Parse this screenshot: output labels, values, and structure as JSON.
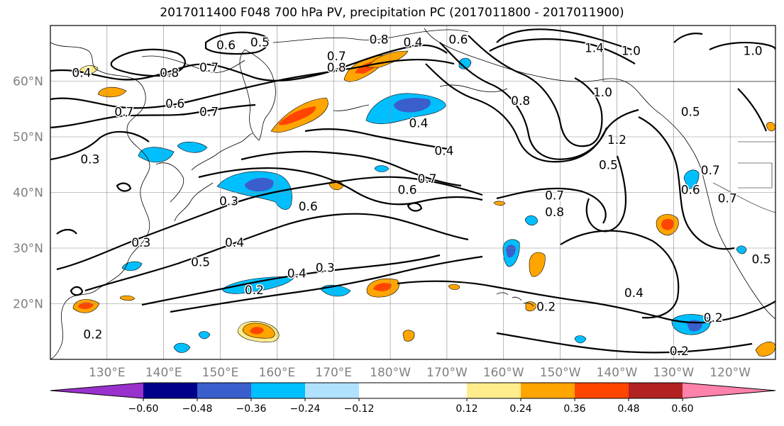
{
  "title": "2017011400 F048 700 hPa PV, precipitation PC (2017011800 - 2017011900)",
  "map": {
    "lat_labels": [
      "60°N",
      "50°N",
      "40°N",
      "30°N",
      "20°N"
    ],
    "lat_values": [
      60,
      50,
      40,
      30,
      20
    ],
    "lon_labels": [
      "130°E",
      "140°E",
      "150°E",
      "160°E",
      "170°E",
      "180°W",
      "170°W",
      "160°W",
      "150°W",
      "140°W",
      "130°W",
      "120°W"
    ],
    "lon_values": [
      130,
      140,
      150,
      160,
      170,
      180,
      190,
      200,
      210,
      220,
      230,
      240
    ],
    "extent": {
      "lon_min": 120,
      "lon_max": 248,
      "lat_min": 10,
      "lat_max": 70
    },
    "contour_labels": [
      {
        "text": "0.6",
        "lon": 151,
        "lat": 66.5
      },
      {
        "text": "0.5",
        "lon": 157,
        "lat": 67
      },
      {
        "text": "0.8",
        "lon": 141,
        "lat": 61.5
      },
      {
        "text": "0.7",
        "lon": 148,
        "lat": 62.5
      },
      {
        "text": "0.4",
        "lon": 125.5,
        "lat": 61.5
      },
      {
        "text": "0.6",
        "lon": 142,
        "lat": 56
      },
      {
        "text": "0.7",
        "lon": 133,
        "lat": 54.5
      },
      {
        "text": "0.7",
        "lon": 148,
        "lat": 54.5
      },
      {
        "text": "0.3",
        "lon": 127,
        "lat": 46
      },
      {
        "text": "0.8",
        "lon": 170.5,
        "lat": 62.5
      },
      {
        "text": "0.7",
        "lon": 170.5,
        "lat": 64.5
      },
      {
        "text": "0.8",
        "lon": 178,
        "lat": 67.5
      },
      {
        "text": "0.4",
        "lon": 184,
        "lat": 67
      },
      {
        "text": "0.6",
        "lon": 192,
        "lat": 67.5
      },
      {
        "text": "0.4",
        "lon": 185,
        "lat": 52.5
      },
      {
        "text": "0.4",
        "lon": 189.5,
        "lat": 47.5
      },
      {
        "text": "0.8",
        "lon": 203,
        "lat": 56.5
      },
      {
        "text": "1.0",
        "lon": 217.5,
        "lat": 58
      },
      {
        "text": "1.4",
        "lon": 216,
        "lat": 66
      },
      {
        "text": "1.0",
        "lon": 222.5,
        "lat": 65.5
      },
      {
        "text": "1.0",
        "lon": 244,
        "lat": 65.5
      },
      {
        "text": "0.5",
        "lon": 233,
        "lat": 54.5
      },
      {
        "text": "1.2",
        "lon": 220,
        "lat": 49.5
      },
      {
        "text": "0.5",
        "lon": 218.5,
        "lat": 45
      },
      {
        "text": "0.6",
        "lon": 233,
        "lat": 40.5
      },
      {
        "text": "0.7",
        "lon": 236.5,
        "lat": 44
      },
      {
        "text": "0.7",
        "lon": 239.5,
        "lat": 39
      },
      {
        "text": "0.7",
        "lon": 209,
        "lat": 39.5
      },
      {
        "text": "0.8",
        "lon": 209,
        "lat": 36.5
      },
      {
        "text": "0.6",
        "lon": 183,
        "lat": 40.5
      },
      {
        "text": "0.7",
        "lon": 186.5,
        "lat": 42.5
      },
      {
        "text": "0.3",
        "lon": 151.5,
        "lat": 38.5
      },
      {
        "text": "0.6",
        "lon": 165.5,
        "lat": 37.5
      },
      {
        "text": "0.3",
        "lon": 136,
        "lat": 31
      },
      {
        "text": "0.4",
        "lon": 152.5,
        "lat": 31
      },
      {
        "text": "0.5",
        "lon": 146.5,
        "lat": 27.5
      },
      {
        "text": "0.4",
        "lon": 163.5,
        "lat": 25.5
      },
      {
        "text": "0.3",
        "lon": 168.5,
        "lat": 26.5
      },
      {
        "text": "0.2",
        "lon": 156,
        "lat": 22.5
      },
      {
        "text": "0.2",
        "lon": 127.5,
        "lat": 14.5
      },
      {
        "text": "0.2",
        "lon": 207.5,
        "lat": 19.5
      },
      {
        "text": "0.4",
        "lon": 223,
        "lat": 22
      },
      {
        "text": "0.2",
        "lon": 237,
        "lat": 17.5
      },
      {
        "text": "0.2",
        "lon": 231,
        "lat": 11.5
      },
      {
        "text": "0.5",
        "lon": 245.5,
        "lat": 28
      }
    ]
  },
  "colorbar": {
    "labels": [
      "−0.60",
      "−0.48",
      "−0.36",
      "−0.24",
      "−0.12",
      "0.12",
      "0.24",
      "0.36",
      "0.48",
      "0.60"
    ],
    "bounds": [
      -0.6,
      -0.48,
      -0.36,
      -0.24,
      -0.12,
      0.12,
      0.24,
      0.36,
      0.48,
      0.6
    ],
    "colors": [
      "#9932cc",
      "#00008b",
      "#3a5fcd",
      "#00bfff",
      "#b0e2ff",
      "#ffffff",
      "#ffec8b",
      "#ffa500",
      "#ff4500",
      "#b22222",
      "#ff82ab"
    ]
  }
}
